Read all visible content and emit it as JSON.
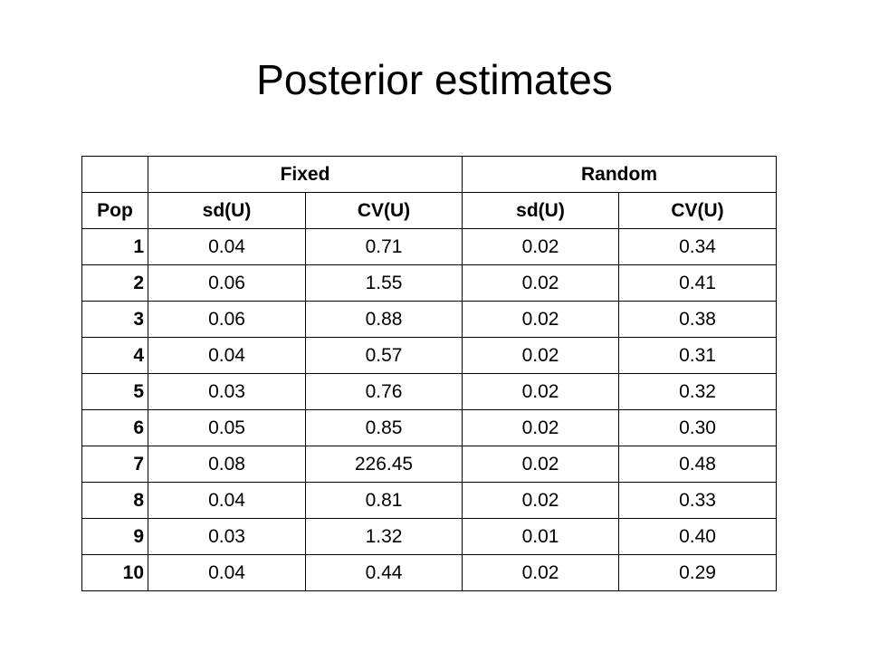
{
  "title": "Posterior estimates",
  "table": {
    "groups": [
      "Fixed",
      "Random"
    ],
    "columns": [
      "Pop",
      "sd(U)",
      "CV(U)",
      "sd(U)",
      "CV(U)"
    ],
    "rows": [
      [
        "1",
        "0.04",
        "0.71",
        "0.02",
        "0.34"
      ],
      [
        "2",
        "0.06",
        "1.55",
        "0.02",
        "0.41"
      ],
      [
        "3",
        "0.06",
        "0.88",
        "0.02",
        "0.38"
      ],
      [
        "4",
        "0.04",
        "0.57",
        "0.02",
        "0.31"
      ],
      [
        "5",
        "0.03",
        "0.76",
        "0.02",
        "0.32"
      ],
      [
        "6",
        "0.05",
        "0.85",
        "0.02",
        "0.30"
      ],
      [
        "7",
        "0.08",
        "226.45",
        "0.02",
        "0.48"
      ],
      [
        "8",
        "0.04",
        "0.81",
        "0.02",
        "0.33"
      ],
      [
        "9",
        "0.03",
        "1.32",
        "0.01",
        "0.40"
      ],
      [
        "10",
        "0.04",
        "0.44",
        "0.02",
        "0.29"
      ]
    ]
  }
}
